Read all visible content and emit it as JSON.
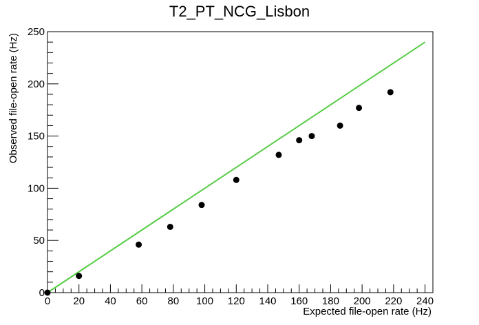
{
  "chart_data": {
    "type": "scatter",
    "title": "T2_PT_NCG_Lisbon",
    "xlabel": "Expected file-open rate (Hz)",
    "ylabel": "Observed file-open rate (Hz)",
    "xlim": [
      0,
      245
    ],
    "ylim": [
      0,
      250
    ],
    "x_ticks": [
      0,
      20,
      40,
      60,
      80,
      100,
      120,
      140,
      160,
      180,
      200,
      220,
      240
    ],
    "y_ticks": [
      0,
      50,
      100,
      150,
      200,
      250
    ],
    "grid": false,
    "series": [
      {
        "type": "scatter",
        "color": "#000000",
        "points": [
          {
            "x": 0,
            "y": 0
          },
          {
            "x": 20,
            "y": 16
          },
          {
            "x": 58,
            "y": 46
          },
          {
            "x": 78,
            "y": 63
          },
          {
            "x": 98,
            "y": 84
          },
          {
            "x": 120,
            "y": 108
          },
          {
            "x": 147,
            "y": 132
          },
          {
            "x": 160,
            "y": 146
          },
          {
            "x": 168,
            "y": 150
          },
          {
            "x": 186,
            "y": 160
          },
          {
            "x": 198,
            "y": 177
          },
          {
            "x": 218,
            "y": 192
          }
        ]
      },
      {
        "type": "line",
        "color": "#55cc44",
        "points": [
          {
            "x": 0,
            "y": 0
          },
          {
            "x": 240,
            "y": 240
          }
        ]
      }
    ]
  }
}
